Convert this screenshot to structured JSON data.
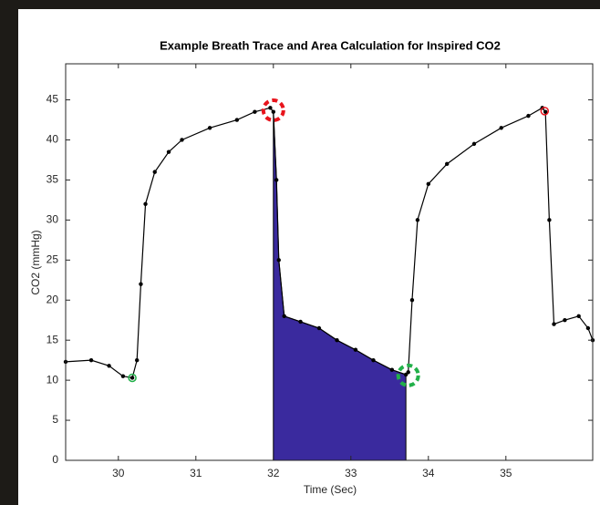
{
  "chart_data": {
    "type": "line",
    "title": "Example Breath Trace and Area Calculation for Inspired CO2",
    "x_label": "Time (Sec)",
    "y_label": "CO2 (mmHg)",
    "xlim": [
      29.32,
      36.12
    ],
    "ylim": [
      0,
      49.5
    ],
    "xticks": [
      30,
      31,
      32,
      33,
      34,
      35
    ],
    "yticks": [
      0,
      5,
      10,
      15,
      20,
      25,
      30,
      35,
      40,
      45
    ],
    "x": [
      29.32,
      29.65,
      29.88,
      30.06,
      30.18,
      30.24,
      30.29,
      30.35,
      30.47,
      30.65,
      30.82,
      31.18,
      31.53,
      31.76,
      31.96,
      32.0,
      32.04,
      32.07,
      32.14,
      32.35,
      32.59,
      32.82,
      33.06,
      33.29,
      33.53,
      33.71,
      33.74,
      33.79,
      33.86,
      34.0,
      34.24,
      34.59,
      34.94,
      35.29,
      35.47,
      35.51,
      35.56,
      35.62,
      35.76,
      35.94,
      36.06,
      36.12
    ],
    "series": [
      {
        "name": "CO2",
        "color": "#000000",
        "values": [
          12.3,
          12.5,
          11.8,
          10.5,
          10.3,
          12.5,
          22,
          32,
          36,
          38.5,
          40,
          41.5,
          42.5,
          43.5,
          44,
          43.5,
          35,
          25,
          18,
          17.3,
          16.5,
          15,
          13.8,
          12.5,
          11.3,
          10.7,
          11,
          20,
          30,
          34.5,
          37,
          39.5,
          41.5,
          43,
          44,
          43.5,
          30,
          17,
          17.5,
          18,
          16.5,
          15
        ]
      }
    ],
    "area": {
      "color": "#3a2a9e",
      "x_start": 32.0,
      "x_end": 33.71
    },
    "markers": [
      {
        "x": 32.0,
        "y": 43.7,
        "color": "#e8141c",
        "style": "dashed"
      },
      {
        "x": 35.5,
        "y": 43.6,
        "color": "#e8141c",
        "style": "small"
      },
      {
        "x": 30.18,
        "y": 10.3,
        "color": "#22b04a",
        "style": "small"
      },
      {
        "x": 33.74,
        "y": 10.6,
        "color": "#22b04a",
        "style": "dashed"
      }
    ],
    "grid": false
  }
}
